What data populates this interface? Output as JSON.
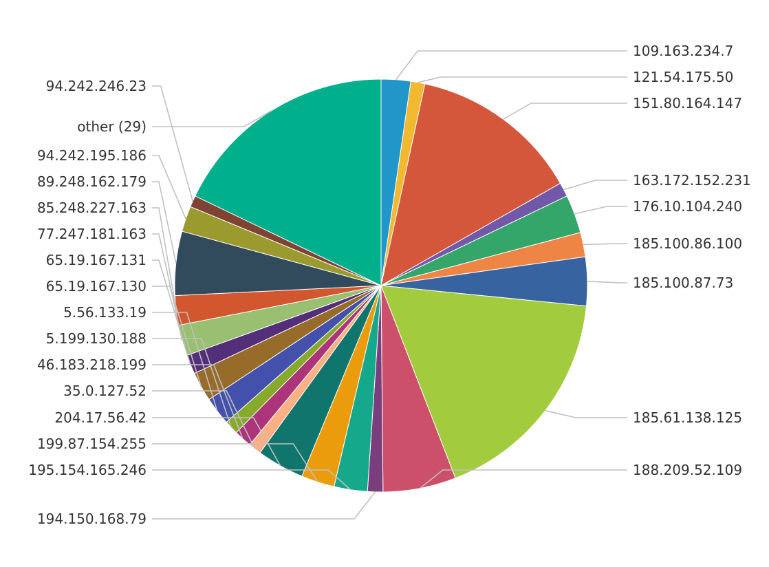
{
  "chart_data": {
    "type": "pie",
    "title": "",
    "slices": [
      {
        "label": "109.163.234.7",
        "value": 2.3,
        "color": "#2196c9"
      },
      {
        "label": "121.54.175.50",
        "value": 1.1,
        "color": "#f2b82f"
      },
      {
        "label": "151.80.164.147",
        "value": 13.3,
        "color": "#d5573b"
      },
      {
        "label": "163.172.152.231",
        "value": 1.1,
        "color": "#7158a8"
      },
      {
        "label": "176.10.104.240",
        "value": 3.0,
        "color": "#34a66a"
      },
      {
        "label": "185.100.86.100",
        "value": 1.9,
        "color": "#ee8544"
      },
      {
        "label": "185.100.87.73",
        "value": 3.8,
        "color": "#3763a0"
      },
      {
        "label": "185.61.138.125",
        "value": 17.5,
        "color": "#a3cb3e"
      },
      {
        "label": "188.209.52.109",
        "value": 5.7,
        "color": "#cc5069"
      },
      {
        "label": "194.150.168.79",
        "value": 1.2,
        "color": "#7b3e7d"
      },
      {
        "label": "195.154.165.246",
        "value": 2.6,
        "color": "#15a88a"
      },
      {
        "label": "199.87.154.255",
        "value": 2.6,
        "color": "#eb9c0d"
      },
      {
        "label": "204.17.56.42",
        "value": 3.7,
        "color": "#0f756d"
      },
      {
        "label": "35.0.127.52",
        "value": 1.0,
        "color": "#fdb083"
      },
      {
        "label": "46.183.218.199",
        "value": 1.4,
        "color": "#ab3578"
      },
      {
        "label": "5.199.130.188",
        "value": 1.1,
        "color": "#88aa2c"
      },
      {
        "label": "5.56.133.19",
        "value": 2.2,
        "color": "#4351ad"
      },
      {
        "label": "65.19.167.130",
        "value": 2.3,
        "color": "#976b2a"
      },
      {
        "label": "65.19.167.131",
        "value": 1.5,
        "color": "#542f79"
      },
      {
        "label": "77.247.181.163",
        "value": 2.4,
        "color": "#99bf70"
      },
      {
        "label": "85.248.227.163",
        "value": 2.3,
        "color": "#d2562e"
      },
      {
        "label": "89.248.162.179",
        "value": 5.0,
        "color": "#324b5c"
      },
      {
        "label": "94.242.195.186",
        "value": 2.0,
        "color": "#9b9a2f"
      },
      {
        "label": "94.242.246.23",
        "value": 0.9,
        "color": "#7f4334"
      },
      {
        "label": "other (29)",
        "value": 17.8,
        "color": "#00b08d"
      }
    ],
    "start": "top",
    "direction": "clockwise",
    "leader_line_color": "#c0c0c0",
    "label_color": "#333333"
  }
}
